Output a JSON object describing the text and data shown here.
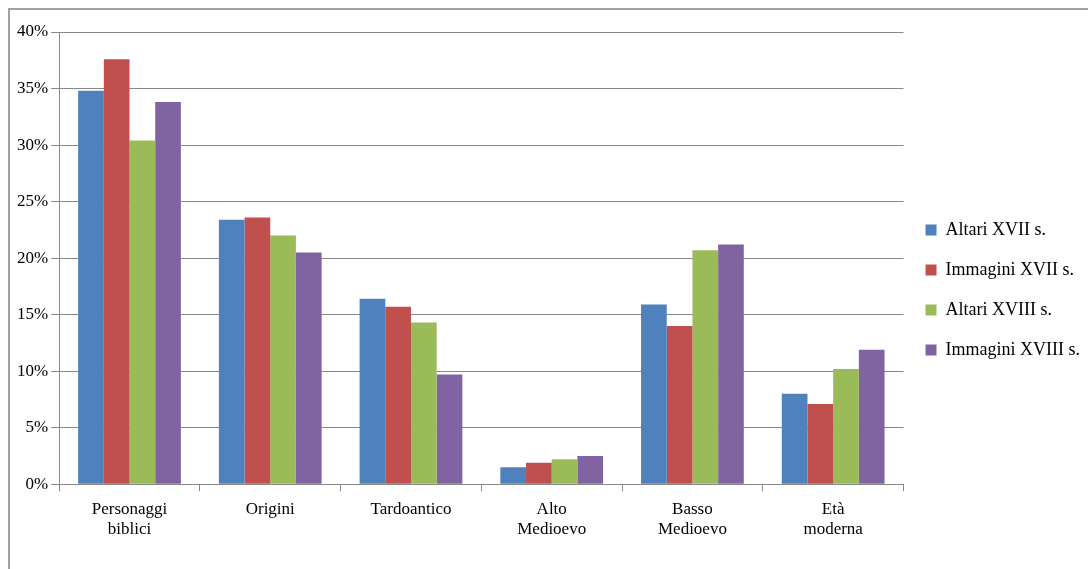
{
  "chart_data": {
    "type": "bar",
    "categories": [
      "Personaggi biblici",
      "Origini",
      "Tardoantico",
      "Alto Medioevo",
      "Basso Medioevo",
      "Età moderna"
    ],
    "series": [
      {
        "name": "Altari XVII s.",
        "color": "#4f81bd",
        "values": [
          34.8,
          23.4,
          16.4,
          1.5,
          15.9,
          8.0
        ]
      },
      {
        "name": "Immagini XVII s.",
        "color": "#c0504d",
        "values": [
          37.6,
          23.6,
          15.7,
          1.9,
          14.0,
          7.1
        ]
      },
      {
        "name": "Altari XVIII s.",
        "color": "#9bbb59",
        "values": [
          30.4,
          22.0,
          14.3,
          2.2,
          20.7,
          10.2
        ]
      },
      {
        "name": "Immagini XVIII s.",
        "color": "#8064a2",
        "values": [
          33.8,
          20.5,
          9.7,
          2.5,
          21.2,
          11.9
        ]
      }
    ],
    "ylim": [
      0,
      40
    ],
    "yticks": [
      {
        "value": 0,
        "label": "0%"
      },
      {
        "value": 5,
        "label": "5%"
      },
      {
        "value": 10,
        "label": "10%"
      },
      {
        "value": 15,
        "label": "15%"
      },
      {
        "value": 20,
        "label": "20%"
      },
      {
        "value": 25,
        "label": "25%"
      },
      {
        "value": 30,
        "label": "30%"
      },
      {
        "value": 35,
        "label": "35%"
      },
      {
        "value": 40,
        "label": "40%"
      }
    ],
    "grid": "y",
    "legend": "right"
  }
}
